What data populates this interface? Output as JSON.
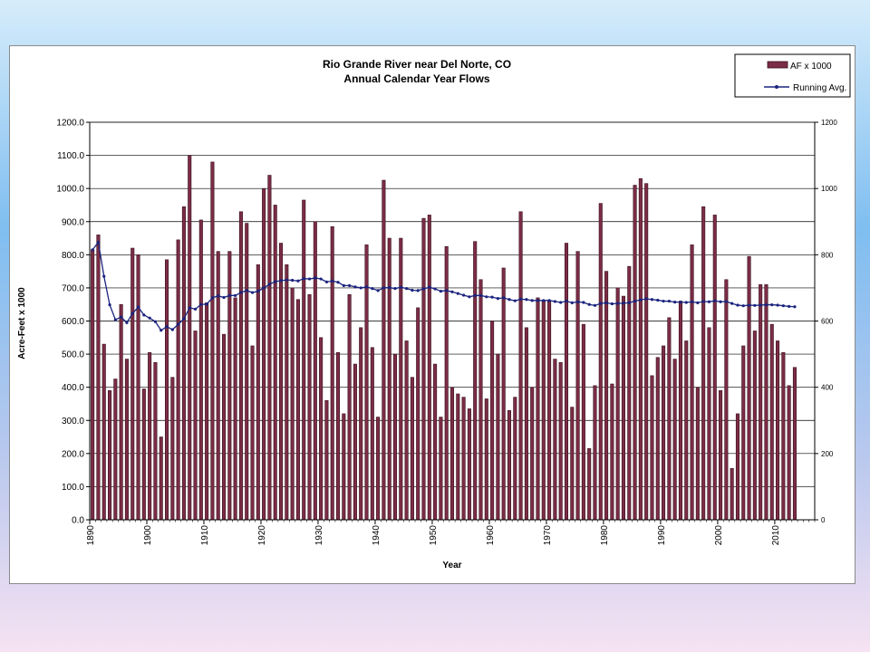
{
  "colors": {
    "bar": "#7b2d45",
    "bar_edge": "#3a0f1e",
    "line": "#1a237e",
    "grid": "#000000"
  },
  "chart_data": {
    "type": "bar",
    "title": "Rio Grande River near Del Norte, CO",
    "subtitle": "Annual Calendar Year Flows",
    "xlabel": "Year",
    "ylabel": "Acre-Feet x 1000",
    "ylim": [
      0,
      1200
    ],
    "yticks": [
      "0.0",
      "100.0",
      "200.0",
      "300.0",
      "400.0",
      "500.0",
      "600.0",
      "700.0",
      "800.0",
      "900.0",
      "1000.0",
      "1100.0",
      "1200.0"
    ],
    "y2lim": [
      0,
      1200
    ],
    "y2ticks": [
      "0",
      "200",
      "400",
      "600",
      "800",
      "1000",
      "1200"
    ],
    "xlim": [
      1890,
      2017
    ],
    "xticks": [
      "1890",
      "1900",
      "1910",
      "1920",
      "1930",
      "1940",
      "1950",
      "1960",
      "1970",
      "1980",
      "1990",
      "2000",
      "2010"
    ],
    "grid": "horizontal",
    "legend_position": "top-right",
    "x": [
      1890,
      1891,
      1892,
      1893,
      1894,
      1895,
      1896,
      1897,
      1898,
      1899,
      1900,
      1901,
      1902,
      1903,
      1904,
      1905,
      1906,
      1907,
      1908,
      1909,
      1910,
      1911,
      1912,
      1913,
      1914,
      1915,
      1916,
      1917,
      1918,
      1919,
      1920,
      1921,
      1922,
      1923,
      1924,
      1925,
      1926,
      1927,
      1928,
      1929,
      1930,
      1931,
      1932,
      1933,
      1934,
      1935,
      1936,
      1937,
      1938,
      1939,
      1940,
      1941,
      1942,
      1943,
      1944,
      1945,
      1946,
      1947,
      1948,
      1949,
      1950,
      1951,
      1952,
      1953,
      1954,
      1955,
      1956,
      1957,
      1958,
      1959,
      1960,
      1961,
      1962,
      1963,
      1964,
      1965,
      1966,
      1967,
      1968,
      1969,
      1970,
      1971,
      1972,
      1973,
      1974,
      1975,
      1976,
      1977,
      1978,
      1979,
      1980,
      1981,
      1982,
      1983,
      1984,
      1985,
      1986,
      1987,
      1988,
      1989,
      1990,
      1991,
      1992,
      1993,
      1994,
      1995,
      1996,
      1997,
      1998,
      1999,
      2000,
      2001,
      2002,
      2003,
      2004,
      2005,
      2006,
      2007,
      2008,
      2009,
      2010,
      2011,
      2012,
      2013
    ],
    "series": [
      {
        "name": "AF x 1000",
        "values": [
          815,
          860,
          530,
          390,
          425,
          650,
          485,
          820,
          800,
          395,
          505,
          475,
          250,
          785,
          430,
          845,
          945,
          1100,
          570,
          905,
          655,
          1080,
          810,
          560,
          810,
          670,
          930,
          895,
          525,
          770,
          1000,
          1040,
          950,
          835,
          770,
          700,
          665,
          965,
          680,
          900,
          550,
          360,
          885,
          505,
          320,
          680,
          470,
          580,
          830,
          520,
          310,
          1025,
          850,
          500,
          850,
          540,
          430,
          640,
          910,
          920,
          470,
          310,
          825,
          400,
          380,
          370,
          335,
          840,
          725,
          365,
          600,
          500,
          760,
          330,
          370,
          930,
          580,
          400,
          670,
          660,
          660,
          485,
          475,
          835,
          340,
          810,
          590,
          215,
          405,
          955,
          750,
          410,
          700,
          675,
          765,
          1010,
          1030,
          1015,
          435,
          490,
          525,
          610,
          485,
          660,
          540,
          830,
          400,
          945,
          580,
          920,
          390,
          725,
          155,
          320,
          525,
          795,
          570,
          710,
          710,
          590,
          540,
          505,
          405,
          460
        ]
      },
      {
        "name": "Running Avg.",
        "values": [
          815,
          838,
          735,
          649,
          604,
          612,
          595,
          623,
          642,
          618,
          609,
          598,
          572,
          583,
          574,
          590,
          607,
          640,
          636,
          650,
          651,
          670,
          676,
          671,
          677,
          677,
          686,
          692,
          686,
          690,
          700,
          711,
          719,
          722,
          724,
          723,
          721,
          728,
          727,
          730,
          727,
          718,
          721,
          717,
          707,
          707,
          703,
          700,
          703,
          698,
          692,
          700,
          701,
          698,
          702,
          698,
          693,
          692,
          697,
          702,
          697,
          690,
          692,
          688,
          683,
          678,
          673,
          677,
          677,
          673,
          672,
          668,
          670,
          665,
          661,
          666,
          665,
          662,
          662,
          662,
          662,
          659,
          656,
          660,
          655,
          658,
          656,
          650,
          647,
          653,
          655,
          652,
          653,
          654,
          655,
          660,
          664,
          667,
          665,
          663,
          660,
          660,
          657,
          657,
          656,
          658,
          655,
          659,
          658,
          661,
          658,
          659,
          653,
          648,
          646,
          648,
          647,
          648,
          649,
          649,
          648,
          646,
          644,
          643
        ]
      }
    ]
  }
}
